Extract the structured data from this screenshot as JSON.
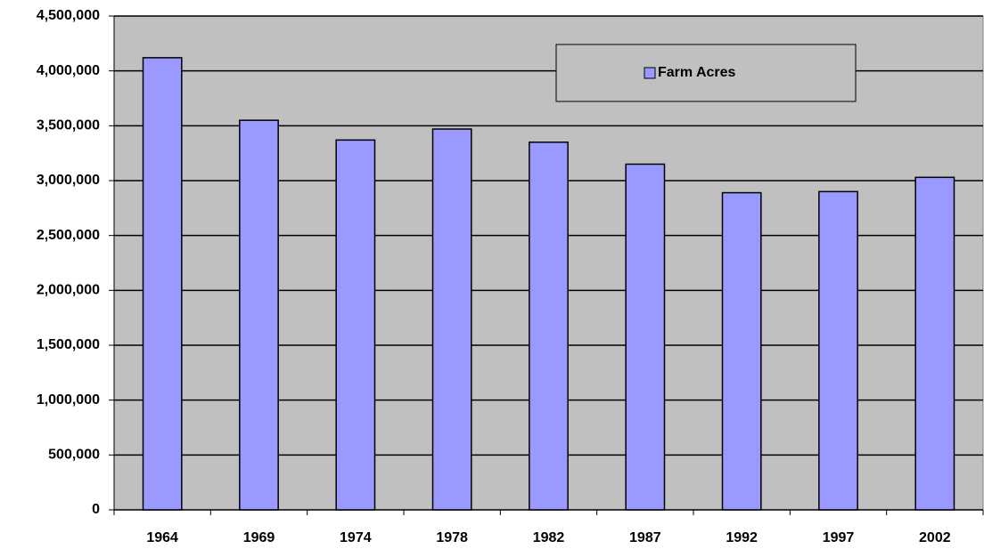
{
  "chart_data": {
    "type": "bar",
    "categories": [
      "1964",
      "1969",
      "1974",
      "1978",
      "1982",
      "1987",
      "1992",
      "1997",
      "2002"
    ],
    "series": [
      {
        "name": "Farm Acres",
        "color": "#9999ff",
        "values": [
          4120000,
          3550000,
          3370000,
          3470000,
          3350000,
          3150000,
          2890000,
          2900000,
          3030000
        ]
      }
    ],
    "ylim": [
      0,
      4500000
    ],
    "yticks": [
      0,
      {
        "value": 500000,
        "label": "500,000"
      },
      {
        "value": 1000000,
        "label": "1,000,000"
      },
      {
        "value": 1500000,
        "label": "1,500,000"
      },
      {
        "value": 2000000,
        "label": "2,000,000"
      },
      {
        "value": 2500000,
        "label": "2,500,000"
      },
      {
        "value": 3000000,
        "label": "3,000,000"
      },
      {
        "value": 3500000,
        "label": "3,500,000"
      },
      {
        "value": 4000000,
        "label": "4,000,000"
      },
      {
        "value": 4500000,
        "label": "4,500,000"
      }
    ],
    "grid": true,
    "legend": "top-right",
    "plot_background": "#c0c0c0"
  }
}
